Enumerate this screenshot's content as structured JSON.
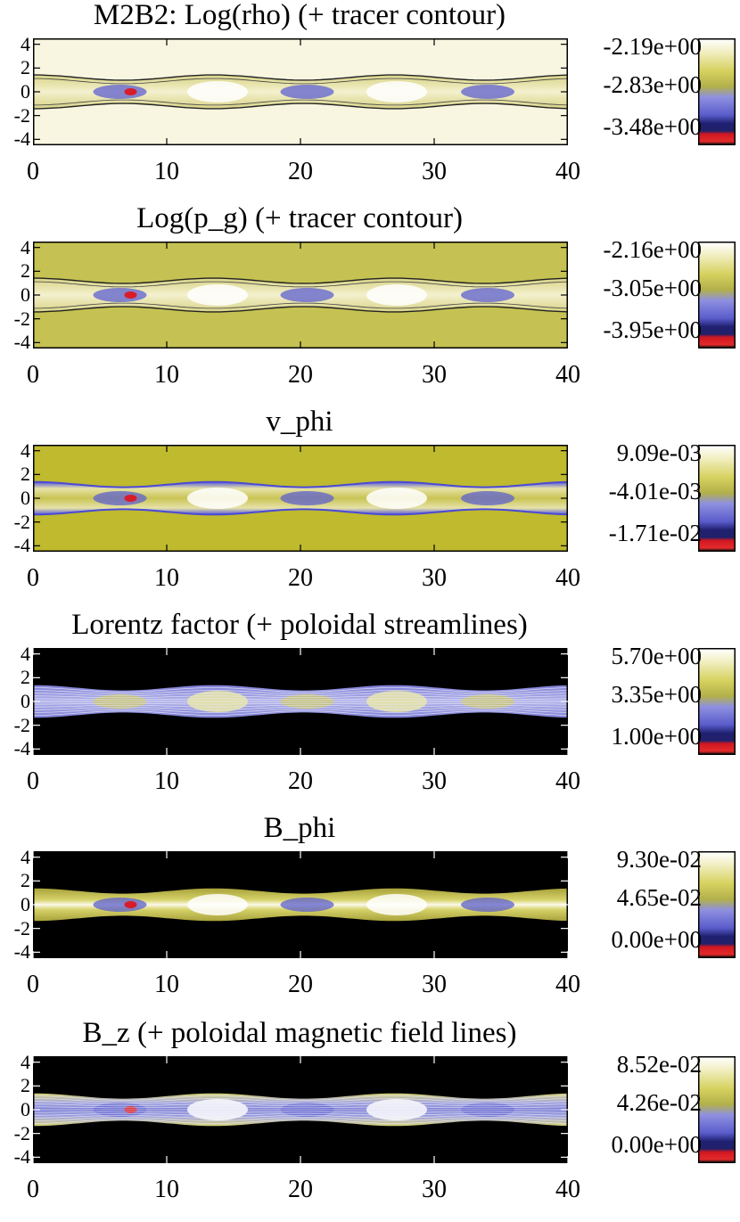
{
  "figure_label": "M2B2",
  "chart_data": [
    {
      "type": "heatmap",
      "title": "M2B2: Log(rho) (+ tracer contour)",
      "field": "Log(rho)",
      "overlay": "tracer contour",
      "background": "#f8f6e0",
      "jet": "light",
      "xlim": [
        0,
        40
      ],
      "ylim": [
        -4.5,
        4.5
      ],
      "xticks": [
        "0",
        "10",
        "20",
        "30",
        "40"
      ],
      "yticks": [
        "4",
        "2",
        "0",
        "-2",
        "-4"
      ],
      "colorbar": [
        "-2.19e+00",
        "-2.83e+00",
        "-3.48e+00"
      ]
    },
    {
      "type": "heatmap",
      "title": "Log(p_g) (+ tracer contour)",
      "field": "Log(p_g)",
      "overlay": "tracer contour",
      "background": "#c5c253",
      "jet": "light",
      "xlim": [
        0,
        40
      ],
      "ylim": [
        -4.5,
        4.5
      ],
      "xticks": [
        "0",
        "10",
        "20",
        "30",
        "40"
      ],
      "yticks": [
        "4",
        "2",
        "0",
        "-2",
        "-4"
      ],
      "colorbar": [
        "-2.16e+00",
        "-3.05e+00",
        "-3.95e+00"
      ]
    },
    {
      "type": "heatmap",
      "title": "v_phi",
      "field": "v_phi",
      "overlay": "none",
      "background": "#bfba2e",
      "jet": "vphi",
      "xlim": [
        0,
        40
      ],
      "ylim": [
        -4.5,
        4.5
      ],
      "xticks": [
        "0",
        "10",
        "20",
        "30",
        "40"
      ],
      "yticks": [
        "4",
        "2",
        "0",
        "-2",
        "-4"
      ],
      "colorbar": [
        "9.09e-03",
        "-4.01e-03",
        "-1.71e-02"
      ]
    },
    {
      "type": "heatmap",
      "title": "Lorentz factor (+ poloidal streamlines)",
      "field": "Lorentz factor",
      "overlay": "poloidal streamlines",
      "background": "#000000",
      "jet": "blue",
      "xlim": [
        0,
        40
      ],
      "ylim": [
        -4.5,
        4.5
      ],
      "xticks": [
        "0",
        "10",
        "20",
        "30",
        "40"
      ],
      "yticks": [
        "4",
        "2",
        "0",
        "-2",
        "-4"
      ],
      "colorbar": [
        "5.70e+00",
        "3.35e+00",
        "1.00e+00"
      ]
    },
    {
      "type": "heatmap",
      "title": "B_phi",
      "field": "B_phi",
      "overlay": "none",
      "background": "#000000",
      "jet": "bphi",
      "xlim": [
        0,
        40
      ],
      "ylim": [
        -4.5,
        4.5
      ],
      "xticks": [
        "0",
        "10",
        "20",
        "30",
        "40"
      ],
      "yticks": [
        "4",
        "2",
        "0",
        "-2",
        "-4"
      ],
      "colorbar": [
        "9.30e-02",
        "4.65e-02",
        "0.00e+00"
      ]
    },
    {
      "type": "heatmap",
      "title": "B_z (+ poloidal magnetic field lines)",
      "field": "B_z",
      "overlay": "poloidal magnetic field lines",
      "background": "#000000",
      "jet": "bz",
      "xlim": [
        0,
        40
      ],
      "ylim": [
        -4.5,
        4.5
      ],
      "xticks": [
        "0",
        "10",
        "20",
        "30",
        "40"
      ],
      "yticks": [
        "4",
        "2",
        "0",
        "-2",
        "-4"
      ],
      "colorbar": [
        "8.52e-02",
        "4.26e-02",
        "0.00e+00"
      ]
    }
  ]
}
